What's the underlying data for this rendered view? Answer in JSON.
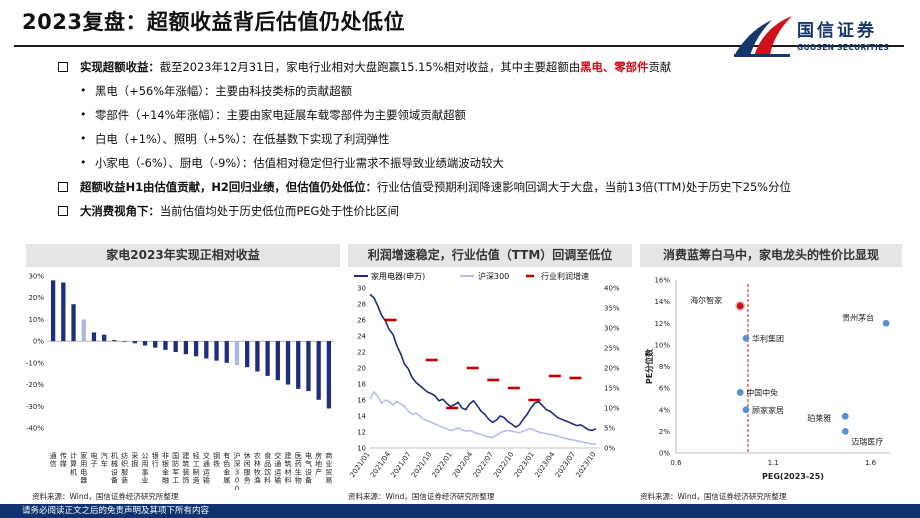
{
  "title": "2023复盘：超额收益背后估值仍处低位",
  "logo": {
    "cn": "国信证券",
    "en": "GUOSEN SECURITIES",
    "colors": {
      "navy": "#17376b",
      "red": "#d0101a"
    }
  },
  "bullets": [
    {
      "parts": [
        "实现超额收益：",
        "截至2023年12月31日，家电行业相对大盘跑赢15.15%相对收益，其中主要超额由",
        "黑电、零部件",
        "贡献"
      ]
    },
    {
      "text": "黑电（+56%年涨幅）：主要由科技类标的贡献超额"
    },
    {
      "text": "零部件（+14%年涨幅）：主要由家电延展车载零部件为主要领域贡献超额"
    },
    {
      "text": "白电（+1%）、照明（+5%）：在低基数下实现了利润弹性"
    },
    {
      "text": "小家电（-6%）、厨电（-9%）：估值相对稳定但行业需求不振导致业绩端波动较大"
    },
    {
      "parts": [
        "超额收益H1由估值贡献，H2回归业绩，但估值仍处低位：",
        "行业估值受预期利润降速影响回调大于大盘，当前13倍(TTM)处于历史下25%分位"
      ]
    },
    {
      "parts": [
        "大消费视角下：",
        "当前估值均处于历史低位而PEG处于性价比区间"
      ]
    }
  ],
  "panels": {
    "left": {
      "title": "家电2023年实现正相对收益",
      "source": "资料来源：Wind，国信证券经济研究所整理"
    },
    "middle": {
      "title": "利润增速稳定，行业估值（TTM）回调至低位",
      "source": "资料来源：Wind，国信证券经济研究所整理"
    },
    "right": {
      "title": "消费蓝筹白马中，家电龙头的性价比显现",
      "source": "资料来源：Wind，国信证券经济研究所整理"
    }
  },
  "footer": "请务必阅读正文之后的免责声明及其项下所有内容",
  "chart_data": [
    {
      "type": "bar",
      "ylim": [
        -40,
        30
      ],
      "yticks": [
        30,
        20,
        10,
        0,
        -10,
        -20,
        -30,
        -40
      ],
      "y_unit": "%",
      "categories": [
        "通信",
        "传媒",
        "计算机",
        "家用电器",
        "电子",
        "汽车",
        "机械设备",
        "纺织服装",
        "采掘",
        "公用事业",
        "银行",
        "非银金融",
        "国防军工",
        "建筑装饰",
        "轻工制造",
        "交通运输",
        "钢铁",
        "有色金属",
        "沪深300",
        "休闲服务",
        "农林牧渔",
        "食品饮料",
        "交通运输",
        "建筑材料",
        "医药生物",
        "电气设备",
        "房地产",
        "商业贸易"
      ],
      "values": [
        28,
        27,
        17,
        10,
        4,
        3,
        0.5,
        0,
        -1,
        -2,
        -3,
        -4,
        -5,
        -6,
        -7,
        -8,
        -9,
        -10,
        -11,
        -12,
        -14,
        -16,
        -18,
        -20,
        -22,
        -23,
        -27,
        -31
      ],
      "colors": {
        "bar": "#1f2d7a",
        "highlight": "#aab6e6"
      },
      "highlight_indices": [
        3,
        18
      ]
    },
    {
      "type": "line",
      "x_ticks": [
        "2021/01",
        "2021/04",
        "2021/07",
        "2021/10",
        "2022/01",
        "2022/04",
        "2022/07",
        "2022/10",
        "2023/01",
        "2023/04",
        "2023/07",
        "2023/10"
      ],
      "y_left_ticks": [
        30,
        28,
        26,
        24,
        22,
        20,
        18,
        16,
        14,
        12,
        10
      ],
      "y_right_ticks": [
        "40%",
        "35%",
        "30%",
        "25%",
        "20%",
        "15%",
        "10%",
        "5%",
        "0%"
      ],
      "series": [
        {
          "name": "家用电器(申万)",
          "axis": "left",
          "color": "#1f2d7a",
          "values": [
            29.2,
            28.8,
            27.8,
            26.6,
            25.9,
            24.8,
            24.2,
            22.8,
            21.8,
            20.5,
            19.9,
            18.8,
            18.2,
            17.8,
            17.4,
            17.0,
            16.8,
            16.5,
            15.9,
            16.1,
            15.6,
            15.2,
            15.4,
            15.7,
            15.0,
            14.8,
            15.5,
            15.9,
            15.3,
            14.6,
            14.2,
            13.6,
            13.2,
            13.5,
            14.0,
            13.8,
            13.3,
            13.0,
            12.6,
            12.9,
            13.6,
            14.2,
            15.0,
            15.6,
            15.8,
            15.3,
            14.8,
            14.6,
            14.2,
            13.8,
            13.6,
            13.4,
            13.2,
            13.0,
            12.8,
            12.9,
            12.6,
            12.3,
            12.2,
            12.4
          ]
        },
        {
          "name": "沪深300",
          "axis": "left",
          "color": "#b6bdec",
          "values": [
            16.1,
            17.0,
            16.5,
            15.6,
            16.0,
            15.8,
            15.4,
            15.8,
            15.5,
            15.2,
            14.6,
            14.2,
            14.4,
            14.0,
            13.6,
            13.4,
            13.2,
            13.0,
            12.8,
            12.6,
            12.4,
            12.2,
            12.3,
            12.5,
            12.3,
            12.1,
            12.2,
            12.0,
            11.8,
            11.7,
            11.5,
            11.4,
            11.3,
            11.6,
            11.9,
            12.1,
            12.2,
            12.1,
            12.0,
            11.9,
            12.1,
            12.3,
            12.4,
            12.2,
            12.0,
            11.9,
            11.8,
            11.7,
            11.6,
            11.5,
            11.3,
            11.2,
            11.1,
            11.0,
            10.9,
            10.8,
            10.7,
            10.6,
            10.5,
            10.5
          ]
        },
        {
          "name": "行业利润增速",
          "axis": "right",
          "color": "#c00000",
          "segments": [
            {
              "x": "2021/04",
              "value": 32
            },
            {
              "x": "2021/10",
              "value": 22
            },
            {
              "x": "2022/01",
              "value": 10
            },
            {
              "x": "2022/04",
              "value": 20
            },
            {
              "x": "2022/07",
              "value": 17
            },
            {
              "x": "2022/10",
              "value": 15
            },
            {
              "x": "2023/01",
              "value": 12
            },
            {
              "x": "2023/04",
              "value": 18
            },
            {
              "x": "2023/07",
              "value": 17.5
            }
          ]
        }
      ]
    },
    {
      "type": "scatter",
      "xlabel": "PEG(2023-25)",
      "ylabel": "PE分位数",
      "xlim": [
        0.6,
        1.7
      ],
      "ylim": [
        0,
        16
      ],
      "x_ticks": [
        0.6,
        1.1,
        1.6
      ],
      "y_ticks": [
        "0%",
        "2%",
        "4%",
        "6%",
        "8%",
        "10%",
        "12%",
        "14%",
        "16%"
      ],
      "reference_line_x": 0.97,
      "points": [
        {
          "label": "海尔智家",
          "x": 0.93,
          "y": 13.6,
          "color": "#c0161c"
        },
        {
          "label": "贵州茅台",
          "x": 1.68,
          "y": 12.0,
          "color": "#5b8fd0"
        },
        {
          "label": "华利集团",
          "x": 0.96,
          "y": 10.6,
          "color": "#5b8fd0"
        },
        {
          "label": "中国中免",
          "x": 0.93,
          "y": 5.6,
          "color": "#5b8fd0"
        },
        {
          "label": "顾家家居",
          "x": 0.96,
          "y": 4.0,
          "color": "#5b8fd0"
        },
        {
          "label": "珀莱雅",
          "x": 1.47,
          "y": 3.4,
          "color": "#5b8fd0"
        },
        {
          "label": "迈瑞医疗",
          "x": 1.47,
          "y": 2.0,
          "color": "#5b8fd0"
        }
      ]
    }
  ]
}
